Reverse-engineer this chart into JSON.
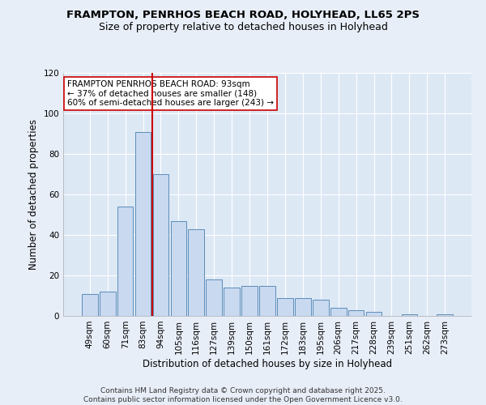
{
  "title1": "FRAMPTON, PENRHOS BEACH ROAD, HOLYHEAD, LL65 2PS",
  "title2": "Size of property relative to detached houses in Holyhead",
  "xlabel": "Distribution of detached houses by size in Holyhead",
  "ylabel": "Number of detached properties",
  "categories": [
    "49sqm",
    "60sqm",
    "71sqm",
    "83sqm",
    "94sqm",
    "105sqm",
    "116sqm",
    "127sqm",
    "139sqm",
    "150sqm",
    "161sqm",
    "172sqm",
    "183sqm",
    "195sqm",
    "206sqm",
    "217sqm",
    "228sqm",
    "239sqm",
    "251sqm",
    "262sqm",
    "273sqm"
  ],
  "values": [
    11,
    12,
    54,
    91,
    70,
    47,
    43,
    18,
    14,
    15,
    15,
    9,
    9,
    8,
    4,
    3,
    2,
    0,
    1,
    0,
    1
  ],
  "bar_color": "#c8d9f0",
  "bar_edge_color": "#5b8db8",
  "vline_x_index": 4,
  "vline_color": "#cc0000",
  "annotation_text": "FRAMPTON PENRHOS BEACH ROAD: 93sqm\n← 37% of detached houses are smaller (148)\n60% of semi-detached houses are larger (243) →",
  "annotation_box_color": "#ffffff",
  "annotation_box_edge": "#cc0000",
  "ylim": [
    0,
    120
  ],
  "yticks": [
    0,
    20,
    40,
    60,
    80,
    100,
    120
  ],
  "background_color": "#e8eef8",
  "plot_background_color": "#dde8f5",
  "footer": "Contains HM Land Registry data © Crown copyright and database right 2025.\nContains public sector information licensed under the Open Government Licence v3.0.",
  "title_fontsize": 9.5,
  "subtitle_fontsize": 9,
  "axis_label_fontsize": 8.5,
  "tick_fontsize": 7.5,
  "annotation_fontsize": 7.5,
  "footer_fontsize": 6.5
}
